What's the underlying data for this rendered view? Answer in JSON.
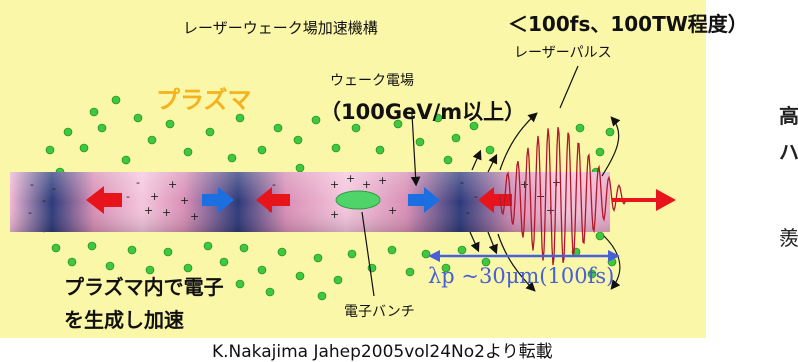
{
  "title": "レーザーウェーク場加速機構",
  "laser_spec": "＜100fs、100TW程度）",
  "laser_pulse_label": "レーザーパルス",
  "plasma_label": "プラズマ",
  "wake_field_label": "ウェーク電場",
  "wake_field_value": "（100GeV/m以上）",
  "generation_line1": "プラズマ内で電子",
  "generation_line2": "を生成し加速",
  "electron_bunch_label": "電子バンチ",
  "wavelength_label": "λp ~30μm(100fs)",
  "credit": "K.Nakajima Jahep2005vol24No2より転載",
  "side_text": [
    "高",
    "ハ",
    "羨"
  ],
  "colors": {
    "background": "#fbf7a8",
    "plasma_text": "#f5b21c",
    "arrow_red": "#e8141c",
    "arrow_blue": "#1c6fe0",
    "electron_green": "#3fc83f",
    "wavelength_blue": "#4760d8",
    "laser_wave": "#b2182b"
  }
}
